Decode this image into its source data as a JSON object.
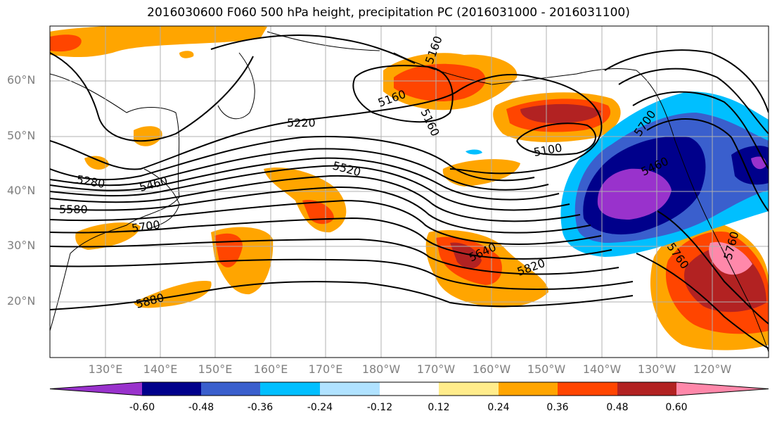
{
  "title": "2016030600 F060 500 hPa height, precipitation PC (2016031000 - 2016031100)",
  "lat_labels": [
    "60°N",
    "50°N",
    "40°N",
    "30°N",
    "20°N"
  ],
  "lon_labels": [
    "130°E",
    "140°E",
    "150°E",
    "160°E",
    "170°E",
    "180°W",
    "170°W",
    "160°W",
    "150°W",
    "140°W",
    "130°W",
    "120°W"
  ],
  "contour_labels": [
    "5160",
    "5160",
    "5160",
    "5220",
    "5280",
    "5460",
    "5520",
    "5580",
    "5700",
    "5100",
    "5460",
    "5640",
    "5820",
    "5760",
    "5880",
    "5760",
    "5700"
  ],
  "colorbar": {
    "ticks": [
      "-0.60",
      "-0.48",
      "-0.36",
      "-0.24",
      "-0.12",
      "0.12",
      "0.24",
      "0.36",
      "0.48",
      "0.60"
    ],
    "colors": [
      "#9932cc",
      "#00008b",
      "#3a5fcd",
      "#00bfff",
      "#b0e2ff",
      "#ffffff",
      "#ffec8b",
      "#ffa500",
      "#ff4500",
      "#b22222",
      "#ff88aa"
    ]
  },
  "colors": {
    "positive_light": "#ffec8b",
    "positive_mid": "#ffa500",
    "positive_strong": "#ff4500",
    "positive_max": "#b22222",
    "negative_light": "#00bfff",
    "negative_mid": "#3a5fcd",
    "negative_strong": "#00008b",
    "negative_max": "#9932cc"
  }
}
